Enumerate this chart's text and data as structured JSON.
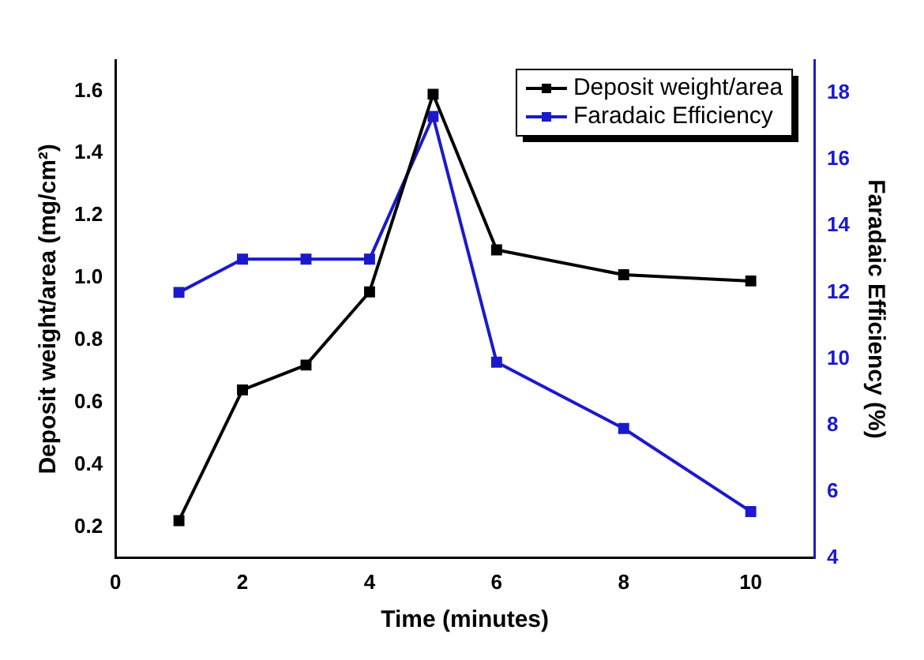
{
  "chart_data": {
    "type": "line",
    "xlabel": "Time (minutes)",
    "ylabel": "Deposit weight/area (mg/cm²)",
    "y2label": "Faradaic Efficiency (%)",
    "x": [
      1,
      2,
      3,
      4,
      5,
      6,
      8,
      10
    ],
    "series": [
      {
        "name": "Deposit weight/area",
        "color": "#000000",
        "values": [
          0.22,
          0.64,
          0.72,
          0.955,
          1.59,
          1.09,
          1.01,
          0.99
        ]
      },
      {
        "name": "Faradaic Efficiency",
        "color": "#1a1acc",
        "axis": "y2",
        "values": [
          12.0,
          13.0,
          13.0,
          13.0,
          17.3,
          9.9,
          7.9,
          5.4
        ]
      }
    ],
    "xlim": [
      0,
      11
    ],
    "xticks": [
      0,
      2,
      4,
      6,
      8,
      10
    ],
    "ylim": [
      0.1,
      1.7
    ],
    "yticks": [
      0.2,
      0.4,
      0.6,
      0.8,
      {
        "value": 1,
        "label": "1.0"
      },
      1.2,
      1.4,
      1.6
    ],
    "y2lim": [
      4,
      19
    ],
    "y2ticks": [
      4,
      6,
      8,
      10,
      12,
      14,
      16,
      18
    ],
    "marker": "square",
    "grid": false,
    "legend": "top right"
  }
}
